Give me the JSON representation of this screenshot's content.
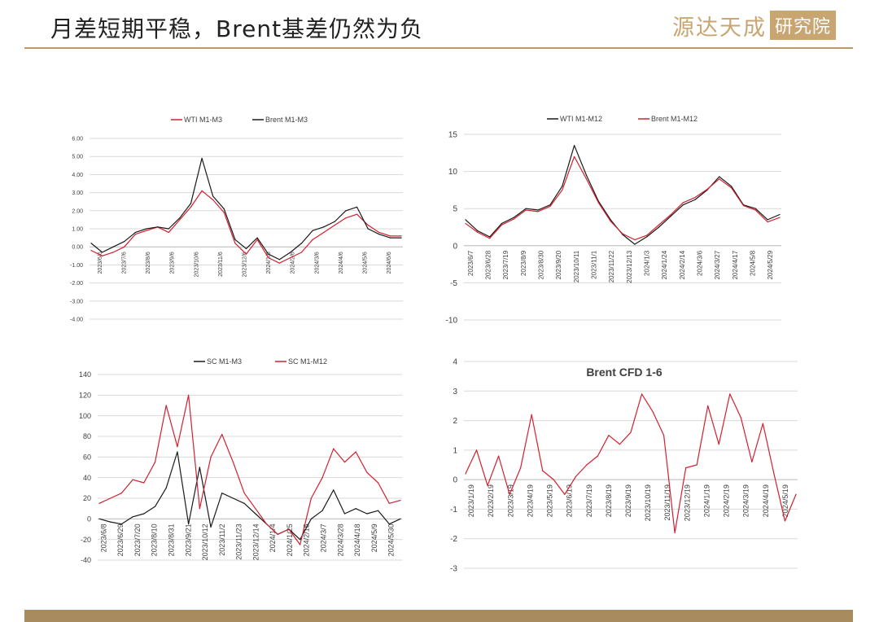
{
  "header": {
    "title": "月差短期平稳，Brent基差仍然为负",
    "logo_text": "源达天成",
    "logo_box": "研究院"
  },
  "colors": {
    "red": "#d2202f",
    "black": "#1a1a1a",
    "grid": "#d9d9d9",
    "accent": "#b99967"
  },
  "chart_data": [
    {
      "type": "line",
      "ylim": [
        -4,
        6
      ],
      "yticks": [
        "-4.00",
        "-3.00",
        "-2.00",
        "-1.00",
        "0.00",
        "1.00",
        "2.00",
        "3.00",
        "4.00",
        "5.00",
        "6.00"
      ],
      "x_labels": [
        "2023/6/6",
        "2023/7/6",
        "2023/8/6",
        "2023/9/6",
        "2023/10/6",
        "2023/11/6",
        "2023/12/6",
        "2024/1/6",
        "2024/2/6",
        "2024/3/6",
        "2024/4/6",
        "2024/5/6",
        "2024/6/6"
      ],
      "legend": [
        "WTI M1-M3",
        "Brent M1-M3"
      ],
      "series": [
        {
          "name": "WTI M1-M3",
          "color": "#d2202f",
          "values": [
            -0.2,
            -0.5,
            -0.3,
            0.0,
            0.7,
            0.9,
            1.1,
            0.8,
            1.5,
            2.2,
            3.1,
            2.6,
            1.9,
            0.2,
            -0.4,
            0.4,
            -0.6,
            -0.9,
            -0.6,
            -0.3,
            0.4,
            0.8,
            1.2,
            1.6,
            1.8,
            1.2,
            0.8,
            0.6,
            0.6
          ]
        },
        {
          "name": "Brent M1-M3",
          "color": "#1a1a1a",
          "values": [
            0.2,
            -0.3,
            0.0,
            0.3,
            0.8,
            1.0,
            1.1,
            1.0,
            1.6,
            2.4,
            4.9,
            2.8,
            2.1,
            0.4,
            -0.1,
            0.5,
            -0.4,
            -0.7,
            -0.3,
            0.2,
            0.9,
            1.1,
            1.4,
            2.0,
            2.2,
            1.0,
            0.7,
            0.5,
            0.5
          ]
        }
      ]
    },
    {
      "type": "line",
      "ylim": [
        -10,
        15
      ],
      "yticks": [
        "-10",
        "-5",
        "0",
        "5",
        "10",
        "15"
      ],
      "x_labels": [
        "2023/6/7",
        "2023/6/28",
        "2023/7/19",
        "2023/8/9",
        "2023/8/30",
        "2023/9/20",
        "2023/10/11",
        "2023/11/1",
        "2023/11/22",
        "2023/12/13",
        "2024/1/3",
        "2024/1/24",
        "2024/2/14",
        "2024/3/6",
        "2024/3/27",
        "2024/4/17",
        "2024/5/8",
        "2024/5/29"
      ],
      "legend": [
        "WTI M1-M12",
        "Brent M1-M12"
      ],
      "series": [
        {
          "name": "WTI M1-M12",
          "color": "#1a1a1a",
          "values": [
            3.5,
            2.0,
            1.2,
            3.0,
            3.8,
            5.0,
            4.8,
            5.5,
            8.0,
            13.5,
            9.5,
            6.0,
            3.5,
            1.5,
            0.2,
            1.2,
            2.5,
            4.0,
            5.5,
            6.2,
            7.5,
            9.3,
            8.0,
            5.5,
            5.0,
            3.5,
            4.2
          ]
        },
        {
          "name": "Brent M1-M12",
          "color": "#d2202f",
          "values": [
            3.0,
            1.8,
            1.0,
            2.8,
            3.6,
            4.8,
            4.6,
            5.3,
            7.5,
            12.0,
            9.0,
            5.8,
            3.3,
            1.6,
            0.8,
            1.4,
            2.8,
            4.2,
            5.8,
            6.5,
            7.6,
            9.0,
            7.8,
            5.4,
            4.8,
            3.2,
            3.8
          ]
        }
      ]
    },
    {
      "type": "line",
      "ylim": [
        -40,
        140
      ],
      "yticks": [
        "-40",
        "-20",
        "0",
        "20",
        "40",
        "60",
        "80",
        "100",
        "120",
        "140"
      ],
      "x_labels": [
        "2023/6/8",
        "2023/6/29",
        "2023/7/20",
        "2023/8/10",
        "2023/8/31",
        "2023/9/21",
        "2023/10/12",
        "2023/11/2",
        "2023/11/23",
        "2023/12/14",
        "2024/1/4",
        "2024/1/25",
        "2024/2/15",
        "2024/3/7",
        "2024/3/28",
        "2024/4/18",
        "2024/5/9",
        "2024/5/30"
      ],
      "legend": [
        "SC M1-M3",
        "SC M1-M12"
      ],
      "series": [
        {
          "name": "SC M1-M3",
          "color": "#1a1a1a",
          "values": [
            0,
            -3,
            -5,
            2,
            5,
            12,
            30,
            65,
            -5,
            50,
            -8,
            25,
            20,
            15,
            5,
            -5,
            -15,
            -10,
            -20,
            0,
            8,
            28,
            5,
            10,
            5,
            8,
            -5,
            0
          ]
        },
        {
          "name": "SC M1-M12",
          "color": "#d2202f",
          "values": [
            15,
            20,
            25,
            38,
            35,
            55,
            110,
            70,
            120,
            10,
            60,
            82,
            55,
            25,
            10,
            -5,
            -15,
            -10,
            -25,
            20,
            40,
            68,
            55,
            65,
            45,
            35,
            15,
            18
          ]
        }
      ]
    },
    {
      "type": "line",
      "title": "Brent CFD 1-6",
      "ylim": [
        -3,
        4
      ],
      "yticks": [
        "-3",
        "-2",
        "-1",
        "0",
        "1",
        "2",
        "3",
        "4"
      ],
      "x_labels": [
        "2023/1/19",
        "2023/2/19",
        "2023/3/19",
        "2023/4/19",
        "2023/5/19",
        "2023/6/19",
        "2023/7/19",
        "2023/8/19",
        "2023/9/19",
        "2023/10/19",
        "2023/11/19",
        "2023/12/19",
        "2024/1/19",
        "2024/2/19",
        "2024/3/19",
        "2024/4/19",
        "2024/5/19"
      ],
      "series": [
        {
          "name": "Brent CFD 1-6",
          "color": "#d2202f",
          "values": [
            0.2,
            1.0,
            -0.2,
            0.8,
            -0.5,
            0.4,
            2.2,
            0.3,
            0.0,
            -0.5,
            0.1,
            0.5,
            0.8,
            1.5,
            1.2,
            1.6,
            2.9,
            2.3,
            1.5,
            -1.8,
            0.4,
            0.5,
            2.5,
            1.2,
            2.9,
            2.1,
            0.6,
            1.9,
            0.2,
            -1.4,
            -0.5
          ]
        }
      ]
    }
  ]
}
